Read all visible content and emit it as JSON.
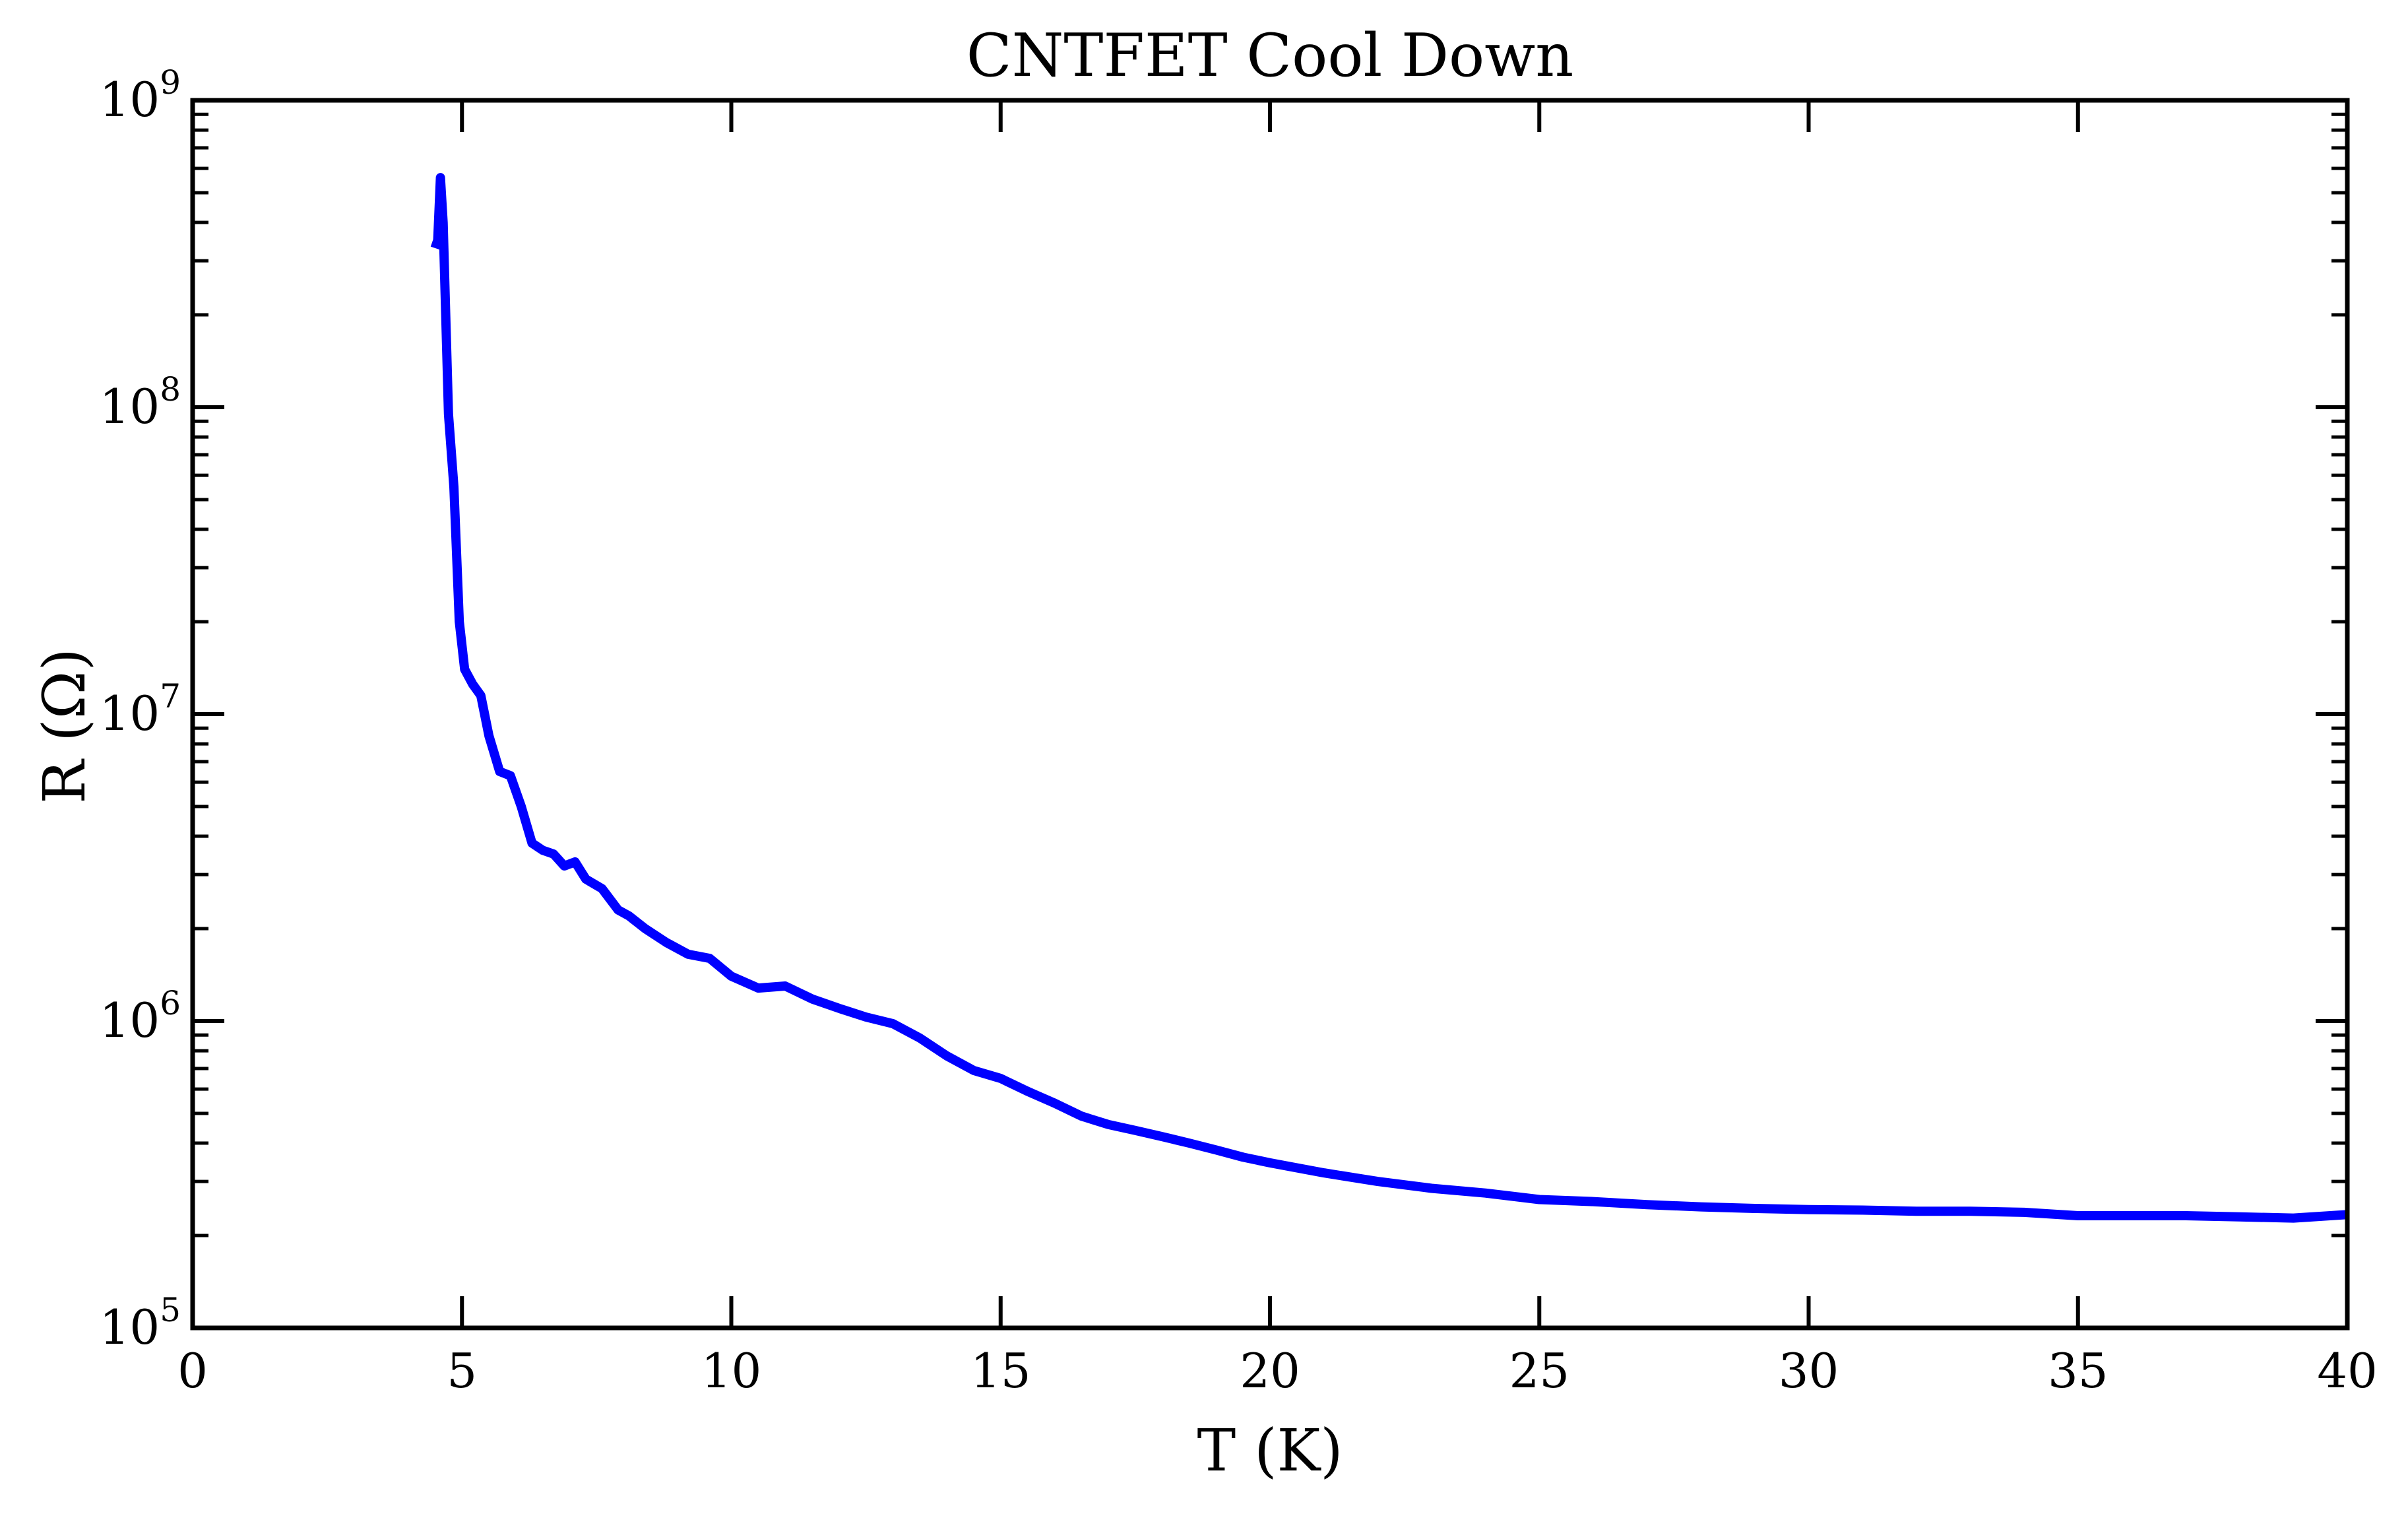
{
  "chart_data": {
    "type": "line",
    "title": "CNTFET Cool Down",
    "xlabel": "T (K)",
    "ylabel": "R (Ω)",
    "xlim": [
      0,
      40
    ],
    "ylim": [
      100000,
      1000000000
    ],
    "yscale": "log",
    "grid": false,
    "legend": "none",
    "x_ticks": [
      0,
      5,
      10,
      15,
      20,
      25,
      30,
      35,
      40
    ],
    "x_tick_labels": [
      "0",
      "5",
      "10",
      "15",
      "20",
      "25",
      "30",
      "35",
      "40"
    ],
    "y_tick_exponents": [
      5,
      6,
      7,
      8,
      9
    ],
    "y_tick_labels": [
      {
        "base": "10",
        "exp": "5"
      },
      {
        "base": "10",
        "exp": "6"
      },
      {
        "base": "10",
        "exp": "7"
      },
      {
        "base": "10",
        "exp": "8"
      },
      {
        "base": "10",
        "exp": "9"
      }
    ],
    "series": [
      {
        "color": "#0000ff",
        "x": [
          4.5,
          4.55,
          4.6,
          4.65,
          4.75,
          4.85,
          4.95,
          5.05,
          5.2,
          5.35,
          5.5,
          5.7,
          5.9,
          6.1,
          6.3,
          6.5,
          6.7,
          6.9,
          7.1,
          7.3,
          7.6,
          7.9,
          8.1,
          8.4,
          8.8,
          9.2,
          9.6,
          10.0,
          10.5,
          11.0,
          11.5,
          12.0,
          12.5,
          13.0,
          13.5,
          14.0,
          14.5,
          15.0,
          15.5,
          16.0,
          16.5,
          17.0,
          17.5,
          18.0,
          18.5,
          19.0,
          19.5,
          20.0,
          21.0,
          22.0,
          23.0,
          24.0,
          25.0,
          26.0,
          27.0,
          28.0,
          29.0,
          30.0,
          31.0,
          32.0,
          33.0,
          34.0,
          35.0,
          36.0,
          37.0,
          38.0,
          39.0,
          40.0
        ],
        "y": [
          330000000,
          350000000,
          560000000,
          400000000,
          95000000,
          55000000,
          20000000,
          14000000,
          12500000,
          11500000,
          8500000,
          6500000,
          6300000,
          5000000,
          3800000,
          3600000,
          3500000,
          3200000,
          3300000,
          2900000,
          2700000,
          2300000,
          2200000,
          2000000,
          1800000,
          1650000,
          1600000,
          1400000,
          1280000,
          1300000,
          1180000,
          1100000,
          1030000,
          980000,
          880000,
          770000,
          690000,
          650000,
          590000,
          540000,
          490000,
          460000,
          440000,
          420000,
          400000,
          380000,
          360000,
          345000,
          320000,
          300000,
          285000,
          275000,
          262000,
          258000,
          252000,
          248000,
          245000,
          243000,
          242000,
          240000,
          240000,
          238000,
          232000,
          232000,
          232000,
          230000,
          228000,
          234000
        ]
      }
    ]
  }
}
